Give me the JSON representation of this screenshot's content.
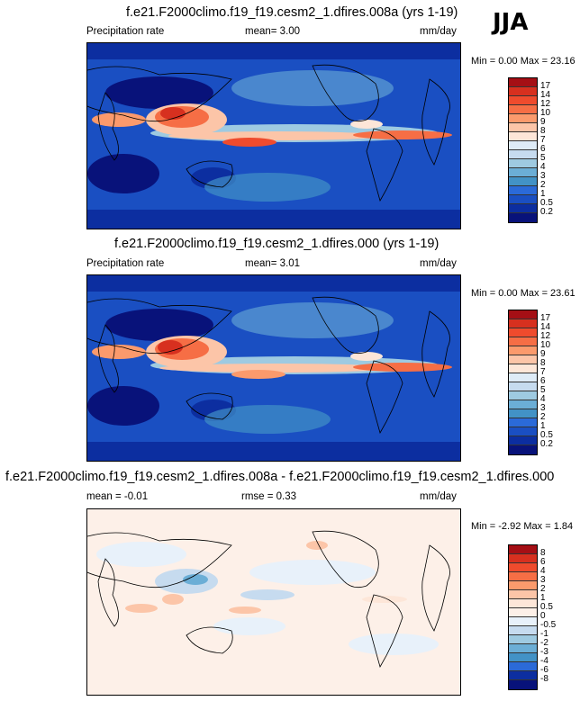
{
  "season": "JJA",
  "panels": [
    {
      "title": "f.e21.F2000climo.f19_f19.cesm2_1.dfires.008a (yrs 1-19)",
      "variable": "Precipitation rate",
      "stat1": "mean=   3.00",
      "stat2": "",
      "units": "mm/day",
      "minmax": "Min =   0.00 Max =  23.16",
      "colorbar": {
        "labels": [
          "17",
          "14",
          "12",
          "10",
          "9",
          "8",
          "7",
          "6",
          "5",
          "4",
          "3",
          "2",
          "1",
          "0.5",
          "0.2"
        ],
        "colors": [
          "#a50f15",
          "#d7301f",
          "#ef4b2d",
          "#f66e45",
          "#fb9a6c",
          "#fcc5a8",
          "#fde6d8",
          "#deebf7",
          "#c6dbef",
          "#9ecae1",
          "#6baed6",
          "#4292c6",
          "#2b6ad8",
          "#1a4fc2",
          "#0c2ea0",
          "#08127a"
        ]
      }
    },
    {
      "title": "f.e21.F2000climo.f19_f19.cesm2_1.dfires.000 (yrs 1-19)",
      "variable": "Precipitation rate",
      "stat1": "mean=   3.01",
      "stat2": "",
      "units": "mm/day",
      "minmax": "Min =   0.00 Max =  23.61",
      "colorbar": {
        "labels": [
          "17",
          "14",
          "12",
          "10",
          "9",
          "8",
          "7",
          "6",
          "5",
          "4",
          "3",
          "2",
          "1",
          "0.5",
          "0.2"
        ],
        "colors": [
          "#a50f15",
          "#d7301f",
          "#ef4b2d",
          "#f66e45",
          "#fb9a6c",
          "#fcc5a8",
          "#fde6d8",
          "#deebf7",
          "#c6dbef",
          "#9ecae1",
          "#6baed6",
          "#4292c6",
          "#2b6ad8",
          "#1a4fc2",
          "#0c2ea0",
          "#08127a"
        ]
      }
    },
    {
      "title": "f.e21.F2000climo.f19_f19.cesm2_1.dfires.008a - f.e21.F2000climo.f19_f19.cesm2_1.dfires.000",
      "variable": "",
      "stat1": "mean =  -0.01",
      "stat2": "rmse =   0.33",
      "units": "mm/day",
      "minmax": "Min =  -2.92 Max =   1.84",
      "colorbar": {
        "labels": [
          "8",
          "6",
          "4",
          "3",
          "2",
          "1",
          "0.5",
          "0",
          "-0.5",
          "-1",
          "-2",
          "-3",
          "-4",
          "-6",
          "-8"
        ],
        "colors": [
          "#a50f15",
          "#d7301f",
          "#ef4b2d",
          "#f66e45",
          "#fb9a6c",
          "#fcc5a8",
          "#fde6d8",
          "#fdf0e8",
          "#e8f1fa",
          "#c6dbef",
          "#9ecae1",
          "#6baed6",
          "#4292c6",
          "#2b6ad8",
          "#0c2ea0",
          "#08127a"
        ]
      }
    }
  ]
}
